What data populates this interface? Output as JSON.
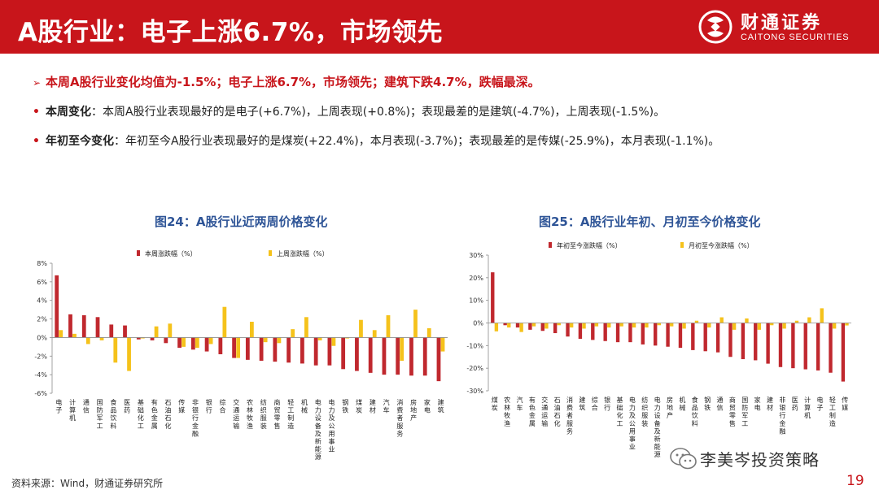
{
  "header": {
    "title": "A股行业：电子上涨6.7%，市场领先",
    "logo_cn": "财通证券",
    "logo_en": "CAITONG SECURITIES",
    "accent": "#c8151b"
  },
  "summary": "本周A股行业变化均值为-1.5%；电子上涨6.7%，市场领先；建筑下跌4.7%，跌幅最深。",
  "points": [
    {
      "label": "本周变化",
      "text": "：本周A股行业表现最好的是电子(+6.7%)，上周表现(+0.8%)；表现最差的是建筑(-4.7%)，上周表现(-1.5%)。"
    },
    {
      "label": "年初至今变化",
      "text": "：年初至今A股行业表现最好的是煤炭(+22.4%)，本月表现(-3.7%)；表现最差的是传媒(-25.9%)，本月表现(-1.1%)。"
    }
  ],
  "chart_data": [
    {
      "type": "bar",
      "title": "图24：A股行业近两周价格变化",
      "xlabel": "",
      "ylabel": "",
      "ylim": [
        -6,
        8
      ],
      "yticks": [
        "8%",
        "6%",
        "4%",
        "2%",
        "0%",
        "-2%",
        "-4%",
        "-6%"
      ],
      "grid": false,
      "legend": "top",
      "categories": [
        "电子",
        "计算机",
        "通信",
        "国防军工",
        "食品饮料",
        "医药",
        "基础化工",
        "有色金属",
        "石油石化",
        "传媒",
        "非银行金融",
        "银行",
        "综合",
        "交通运输",
        "农林牧渔",
        "纺织服装",
        "商贸零售",
        "轻工制造",
        "机械",
        "电力设备及新能源",
        "电力及公用事业",
        "钢铁",
        "煤炭",
        "建材",
        "汽车",
        "消费者服务",
        "房地产",
        "家电",
        "建筑"
      ],
      "series": [
        {
          "name": "本周涨跌幅（%）",
          "color": "#c0282e",
          "values": [
            6.7,
            2.5,
            2.4,
            2.2,
            1.4,
            1.3,
            -0.2,
            -0.3,
            -0.6,
            -1.1,
            -1.3,
            -1.5,
            -1.8,
            -2.2,
            -2.4,
            -2.5,
            -2.6,
            -2.7,
            -2.8,
            -3.0,
            -3.0,
            -3.4,
            -3.6,
            -3.8,
            -4.0,
            -4.0,
            -4.1,
            -4.1,
            -4.7
          ]
        },
        {
          "name": "上周涨跌幅（%）",
          "color": "#f5c21b",
          "values": [
            0.8,
            0.4,
            -0.7,
            -0.3,
            -2.7,
            -3.6,
            -0.1,
            1.2,
            1.5,
            -1.0,
            -1.1,
            -0.7,
            3.3,
            -2.2,
            1.7,
            -0.5,
            -0.6,
            0.9,
            2.2,
            -0.3,
            -0.9,
            -0.1,
            1.9,
            0.8,
            2.4,
            -2.5,
            3.0,
            1.0,
            -1.5
          ]
        }
      ]
    },
    {
      "type": "bar",
      "title": "图25：A股行业年初、月初至今价格变化",
      "xlabel": "",
      "ylabel": "",
      "ylim": [
        -30,
        30
      ],
      "yticks": [
        "30%",
        "20%",
        "10%",
        "0%",
        "-10%",
        "-20%",
        "-30%"
      ],
      "grid": false,
      "legend": "top",
      "categories": [
        "煤炭",
        "农林牧渔",
        "汽车",
        "有色金属",
        "交通运输",
        "石油石化",
        "消费者服务",
        "建筑",
        "综合",
        "银行",
        "基础化工",
        "电力及公用事业",
        "纺织服装",
        "电力设备及新能源",
        "房地产",
        "机械",
        "食品饮料",
        "钢铁",
        "通信",
        "商贸零售",
        "国防军工",
        "家电",
        "建材",
        "非银行金融",
        "医药",
        "计算机",
        "电子",
        "轻工制造",
        "传媒"
      ],
      "series": [
        {
          "name": "年初至今涨跌幅（%）",
          "color": "#c0282e",
          "values": [
            22.4,
            -1.0,
            -2.0,
            -3.0,
            -3.5,
            -4.5,
            -6.0,
            -7.0,
            -7.5,
            -8.0,
            -8.5,
            -8.5,
            -9.5,
            -10.0,
            -10.5,
            -11.0,
            -12.0,
            -12.5,
            -13.0,
            -15.0,
            -16.0,
            -16.5,
            -18.0,
            -19.5,
            -20.0,
            -20.5,
            -21.0,
            -22.0,
            -25.9
          ]
        },
        {
          "name": "月初至今涨跌幅（%）",
          "color": "#f5c21b",
          "values": [
            -3.7,
            -2.0,
            -4.0,
            -1.5,
            -2.5,
            -1.0,
            -2.0,
            -2.5,
            -1.5,
            -2.0,
            -1.5,
            -2.0,
            -2.0,
            -1.0,
            -1.5,
            -2.5,
            1.0,
            -2.0,
            2.5,
            -3.0,
            2.0,
            -3.0,
            -1.0,
            -2.5,
            1.0,
            2.5,
            6.5,
            -2.5,
            -1.1
          ]
        }
      ]
    }
  ],
  "source": "资料来源：Wind，财通证券研究所",
  "page": "19",
  "watermark": "李美岑投资策略"
}
